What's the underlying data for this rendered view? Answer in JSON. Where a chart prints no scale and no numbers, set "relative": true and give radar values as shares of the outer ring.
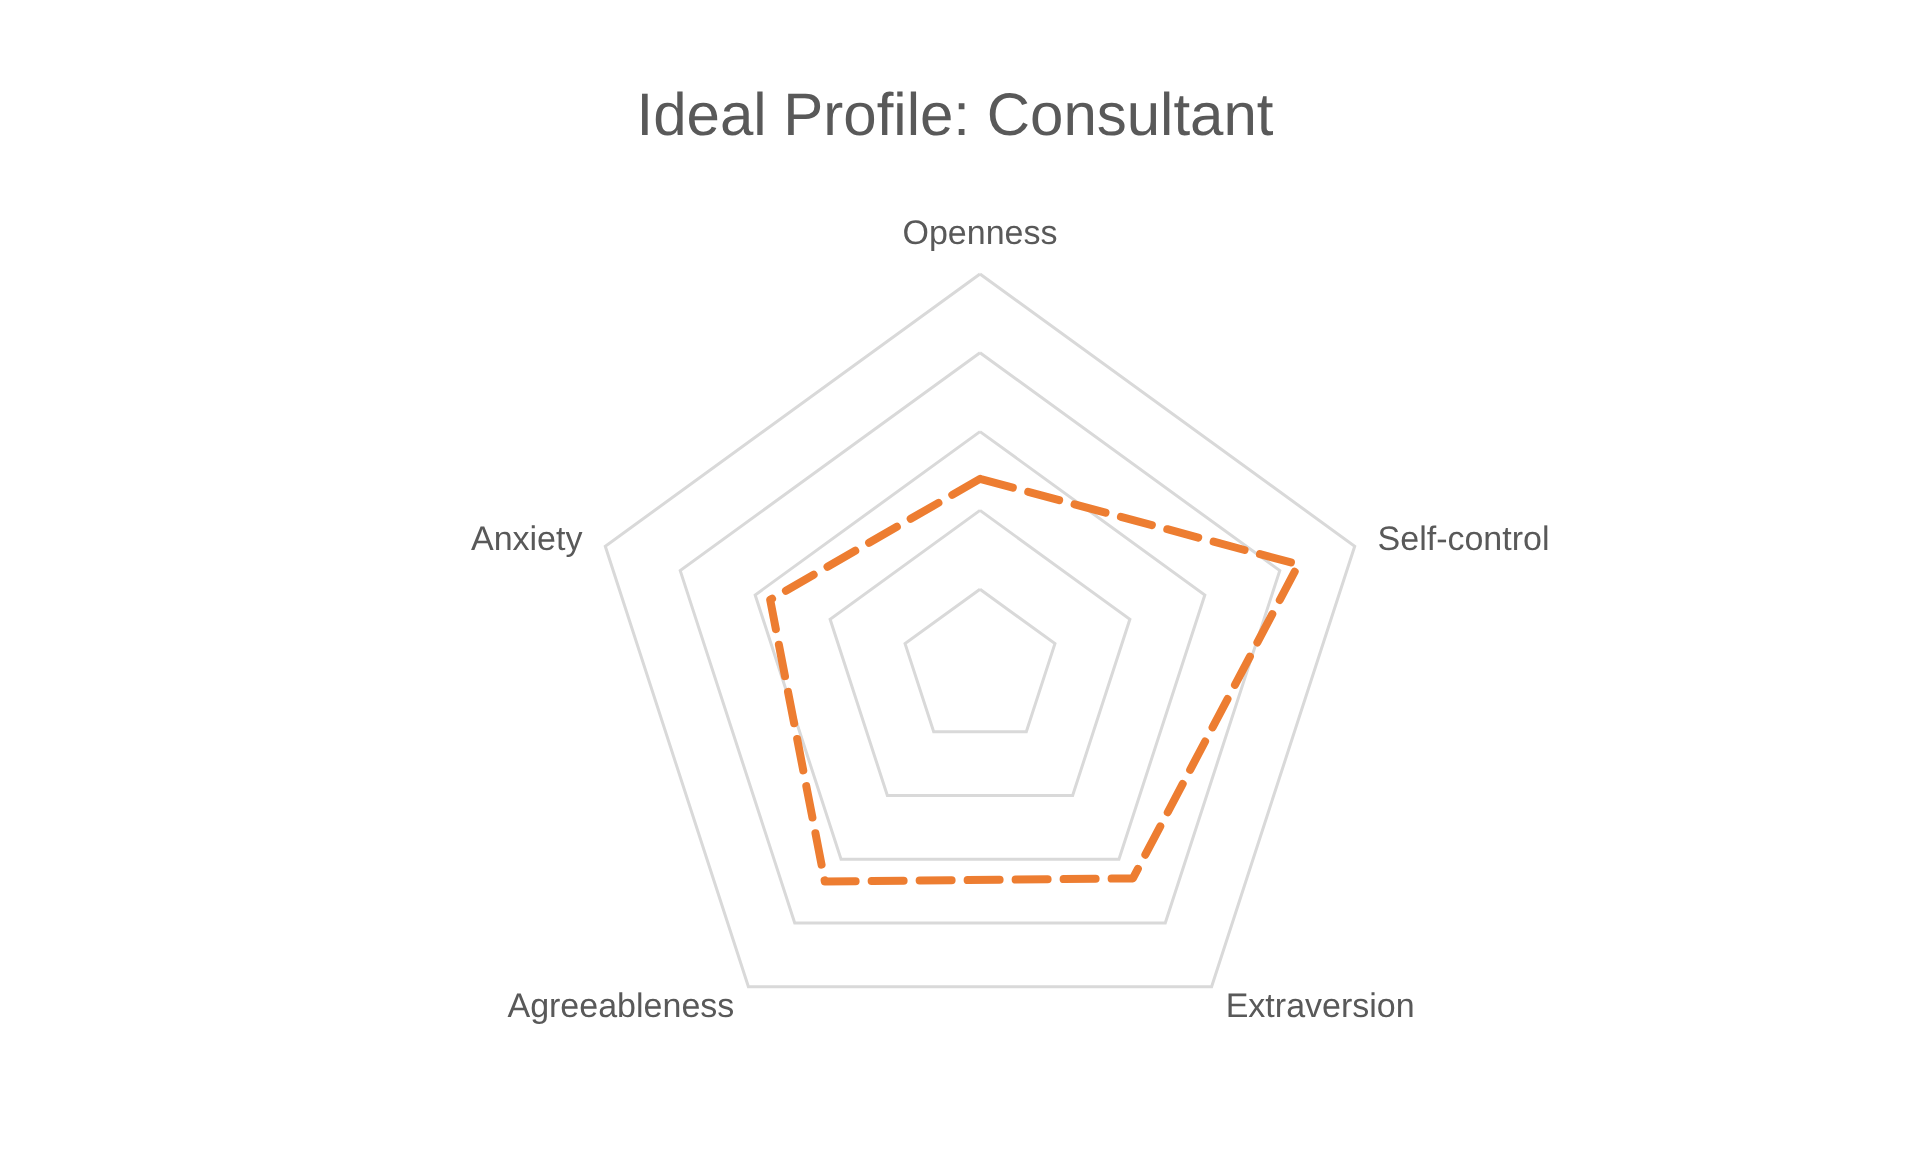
{
  "chart_data": {
    "type": "radar",
    "title": "Ideal Profile: Consultant",
    "categories": [
      "Openness",
      "Self-control",
      "Extraversion",
      "Agreeableness",
      "Anxiety"
    ],
    "series": [
      {
        "color": "#ed7d31",
        "values": [
          0.48,
          0.85,
          0.66,
          0.67,
          0.56
        ]
      }
    ],
    "relative": true,
    "grid": true,
    "marker": "none",
    "line_style": "dashed"
  }
}
